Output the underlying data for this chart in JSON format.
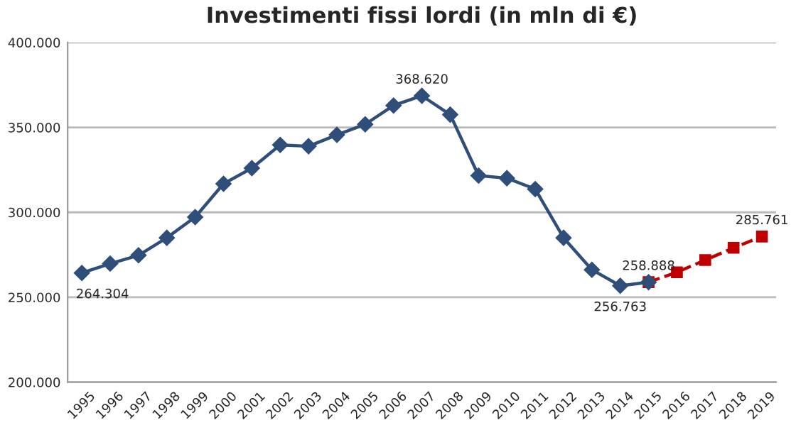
{
  "chart_data": {
    "type": "line",
    "title": "Investimenti fissi lordi (in mln di €)",
    "categories": [
      "1995",
      "1996",
      "1997",
      "1998",
      "1999",
      "2000",
      "2001",
      "2002",
      "2003",
      "2004",
      "2005",
      "2006",
      "2007",
      "2008",
      "2009",
      "2010",
      "2011",
      "2012",
      "2013",
      "2014",
      "2015",
      "2016",
      "2017",
      "2018",
      "2019"
    ],
    "series": [
      {
        "color": "#2f4f7a",
        "marker": "diamond",
        "line_style": "solid",
        "values": [
          264304,
          269800,
          274700,
          285000,
          297200,
          316800,
          326000,
          339700,
          338900,
          345600,
          351800,
          362900,
          368620,
          357500,
          321600,
          320100,
          313700,
          285000,
          266200,
          256763,
          258888,
          null,
          null,
          null,
          null
        ],
        "value_labels": [
          "264.304",
          null,
          null,
          null,
          null,
          null,
          null,
          null,
          null,
          null,
          null,
          null,
          "368.620",
          null,
          null,
          null,
          null,
          null,
          null,
          "256.763",
          "258.888",
          null,
          null,
          null,
          null
        ]
      },
      {
        "color": "#c00000",
        "marker": "square",
        "line_style": "dashed",
        "values": [
          null,
          null,
          null,
          null,
          null,
          null,
          null,
          null,
          null,
          null,
          null,
          null,
          null,
          null,
          null,
          null,
          null,
          null,
          null,
          null,
          258888,
          264700,
          271900,
          279100,
          285761
        ],
        "value_labels": [
          null,
          null,
          null,
          null,
          null,
          null,
          null,
          null,
          null,
          null,
          null,
          null,
          null,
          null,
          null,
          null,
          null,
          null,
          null,
          null,
          null,
          null,
          null,
          null,
          "285.761"
        ]
      }
    ],
    "ylim": [
      200000,
      400000
    ],
    "yticks": [
      {
        "value": 200000,
        "label": "200.000"
      },
      {
        "value": 250000,
        "label": "250.000"
      },
      {
        "value": 300000,
        "label": "300.000"
      },
      {
        "value": 350000,
        "label": "350.000"
      },
      {
        "value": 400000,
        "label": "400.000"
      }
    ],
    "grid": "y"
  }
}
